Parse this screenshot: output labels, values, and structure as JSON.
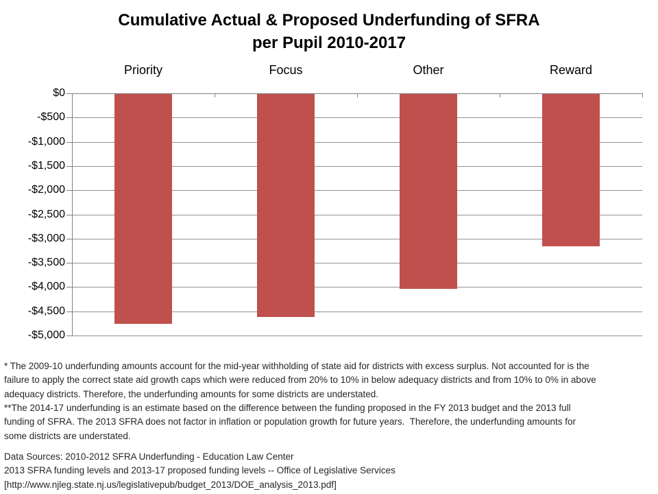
{
  "title": {
    "line1": "Cumulative Actual & Proposed Underfunding of SFRA",
    "line2": "per Pupil 2010-2017"
  },
  "chart_data": {
    "type": "bar",
    "title": "Cumulative Actual & Proposed Underfunding of SFRA per Pupil 2010-2017",
    "categories": [
      "Priority",
      "Focus",
      "Other",
      "Reward"
    ],
    "values": [
      -4750,
      -4600,
      -4025,
      -3150
    ],
    "xlabel": "",
    "ylabel": "",
    "ylim": [
      -5000,
      0
    ],
    "y_tick_interval": 500,
    "y_tick_labels": [
      "$0",
      "-$500",
      "-$1,000",
      "-$1,500",
      "-$2,000",
      "-$2,500",
      "-$3,000",
      "-$3,500",
      "-$4,000",
      "-$4,500",
      "-$5,000"
    ],
    "grid": true,
    "legend": "none",
    "category_labels_position": "top",
    "bar_color": "#C0504D",
    "gridline_color": "#909090",
    "axis_color": "#7F7F7F"
  },
  "footnotes": {
    "note1": "* The 2009-10 underfunding amounts account for the mid-year withholding of state aid for districts with excess surplus. Not accounted for is the\nfailure to apply the correct state aid growth caps which were reduced from 20% to 10% in below adequacy districts and from 10% to 0% in above\nadequacy districts. Therefore, the underfunding amounts for some districts are understated.",
    "note2": "**The 2014-17 underfunding is an estimate based on the difference between the funding proposed in the FY 2013 budget and the 2013 full\nfunding of SFRA. The 2013 SFRA does not factor in inflation or population growth for future years.  Therefore, the underfunding amounts for\nsome districts are understated."
  },
  "sources": {
    "line1": "Data Sources:  2010-2012 SFRA Underfunding  - Education Law Center",
    "line2": "2013 SFRA funding levels and 2013-17 proposed funding levels  -- Office of Legislative Services",
    "line3": "[http://www.njleg.state.nj.us/legislativepub/budget_2013/DOE_analysis_2013.pdf]"
  }
}
